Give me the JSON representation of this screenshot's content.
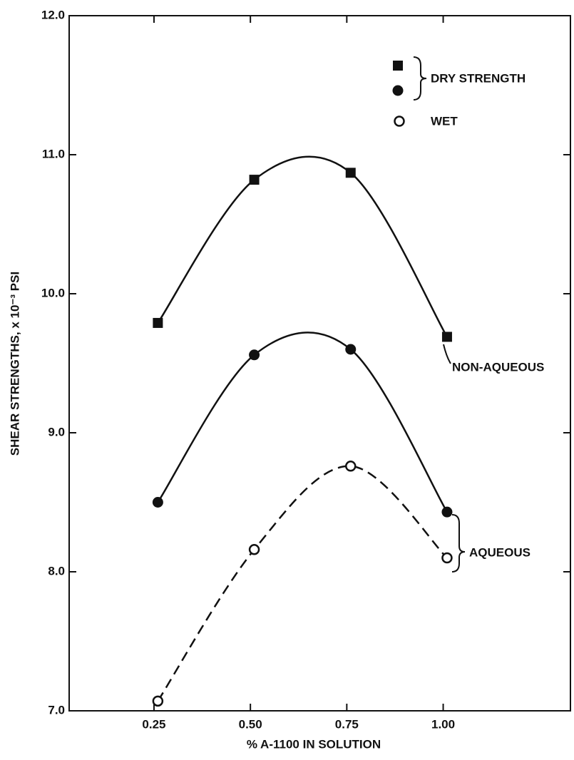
{
  "chart_data": {
    "type": "line",
    "xlabel": "% A-1100 IN SOLUTION",
    "ylabel": "SHEAR STRENGTHS, x 10⁻³ PSI",
    "xlim": [
      0.03,
      1.33
    ],
    "ylim": [
      7.0,
      12.0
    ],
    "xticks": [
      0.25,
      {
        "value": 0.5,
        "label": "0.50"
      },
      0.75,
      {
        "value": 1.0,
        "label": "1.00"
      }
    ],
    "yticks": [
      {
        "value": 7,
        "label": "7.0"
      },
      {
        "value": 8,
        "label": "8.0"
      },
      {
        "value": 9,
        "label": "9.0"
      },
      {
        "value": 10,
        "label": "10.0"
      },
      {
        "value": 11,
        "label": "11.0"
      },
      {
        "value": 12,
        "label": "12.0"
      }
    ],
    "x": [
      0.26,
      0.51,
      0.76,
      1.01
    ],
    "series": [
      {
        "marker": "square",
        "dash": false,
        "color": "#111111",
        "values": [
          9.79,
          10.82,
          10.87,
          9.69
        ]
      },
      {
        "marker": "circle",
        "dash": false,
        "color": "#111111",
        "values": [
          8.5,
          9.56,
          9.6,
          8.43
        ]
      },
      {
        "marker": "open-circle",
        "dash": true,
        "color": "#111111",
        "values": [
          7.07,
          8.16,
          8.76,
          8.1
        ]
      }
    ],
    "legend": {
      "dry": "DRY STRENGTH",
      "wet": "WET"
    },
    "annotations": [
      "NON-AQUEOUS",
      "AQUEOUS"
    ]
  }
}
